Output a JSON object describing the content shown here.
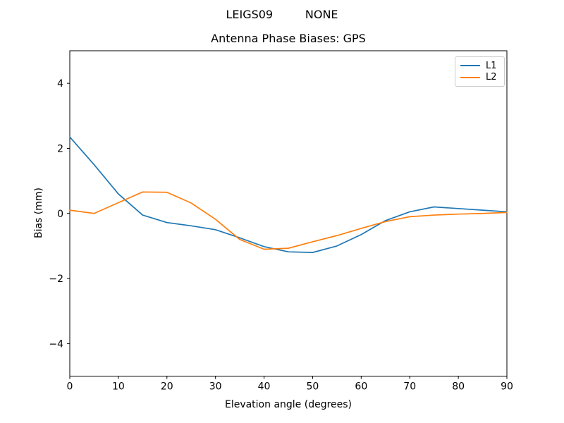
{
  "chart_data": {
    "type": "line",
    "title": "LEIGS09         NONE",
    "subtitle": "Antenna Phase Biases: GPS",
    "xlabel": "Elevation angle (degrees)",
    "ylabel": "Bias (mm)",
    "xlim": [
      0,
      90
    ],
    "ylim": [
      -5,
      5
    ],
    "x_ticks": [
      0,
      10,
      20,
      30,
      40,
      50,
      60,
      70,
      80,
      90
    ],
    "y_ticks": [
      -4,
      -2,
      0,
      2,
      4
    ],
    "grid": false,
    "legend": {
      "position": "upper right"
    },
    "x": [
      0,
      5,
      10,
      15,
      20,
      25,
      30,
      35,
      40,
      45,
      50,
      55,
      60,
      65,
      70,
      75,
      80,
      85,
      90
    ],
    "series": [
      {
        "name": "L1",
        "color": "#1f77b4",
        "values": [
          2.35,
          1.5,
          0.6,
          -0.05,
          -0.28,
          -0.38,
          -0.5,
          -0.75,
          -1.02,
          -1.18,
          -1.2,
          -1.0,
          -0.65,
          -0.22,
          0.05,
          0.2,
          0.15,
          0.1,
          0.05
        ]
      },
      {
        "name": "L2",
        "color": "#ff7f0e",
        "values": [
          0.1,
          0.0,
          0.33,
          0.66,
          0.65,
          0.32,
          -0.18,
          -0.8,
          -1.1,
          -1.07,
          -0.87,
          -0.68,
          -0.46,
          -0.25,
          -0.1,
          -0.05,
          -0.02,
          0.0,
          0.03
        ]
      }
    ]
  }
}
